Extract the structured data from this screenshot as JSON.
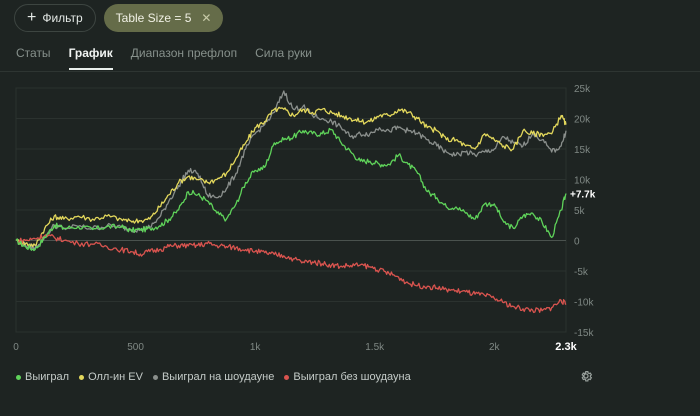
{
  "toolbar": {
    "filter_label": "Фильтр",
    "table_size_label": "Table Size = 5"
  },
  "tabs": [
    {
      "label": "Статы",
      "active": false
    },
    {
      "label": "График",
      "active": true
    },
    {
      "label": "Диапазон префлоп",
      "active": false
    },
    {
      "label": "Сила руки",
      "active": false
    }
  ],
  "chart_data": {
    "type": "line",
    "x_ticks": [
      "0",
      "500",
      "1k",
      "1.5k",
      "2k"
    ],
    "x_current": "2.3k",
    "y_ticks": [
      "25k",
      "20k",
      "15k",
      "10k",
      "5k",
      "0",
      "-5k",
      "-10k",
      "-15k"
    ],
    "xlim": [
      0,
      2300
    ],
    "ylim": [
      -15000,
      25000
    ],
    "end_label": "+7.7k",
    "grid": "horizontal",
    "series": [
      {
        "name": "Выиграл",
        "color": "#5fd35a",
        "x": [
          0,
          40,
          80,
          120,
          160,
          200,
          260,
          320,
          380,
          440,
          480,
          520,
          560,
          600,
          640,
          680,
          720,
          760,
          800,
          840,
          880,
          920,
          960,
          1000,
          1040,
          1080,
          1120,
          1160,
          1200,
          1240,
          1280,
          1320,
          1360,
          1400,
          1440,
          1480,
          1520,
          1560,
          1600,
          1640,
          1680,
          1720,
          1760,
          1800,
          1840,
          1880,
          1920,
          1960,
          2000,
          2040,
          2080,
          2120,
          2160,
          2200,
          2240,
          2280,
          2300
        ],
        "y": [
          0,
          -1000,
          -1500,
          500,
          2500,
          2000,
          2300,
          1800,
          2300,
          2200,
          1700,
          1700,
          2000,
          2400,
          3500,
          5000,
          8000,
          7500,
          6500,
          4500,
          3500,
          6000,
          9500,
          11500,
          12000,
          16000,
          16500,
          17000,
          18000,
          17500,
          17500,
          18200,
          16000,
          14500,
          13000,
          13000,
          12500,
          12500,
          14000,
          12500,
          11000,
          8000,
          7000,
          5500,
          5500,
          4500,
          3500,
          6000,
          6000,
          3000,
          2000,
          4000,
          4500,
          3000,
          500,
          5000,
          7700
        ]
      },
      {
        "name": "Олл-ин EV",
        "color": "#e3d85c",
        "x": [
          0,
          40,
          80,
          120,
          160,
          200,
          260,
          320,
          380,
          440,
          480,
          520,
          560,
          600,
          640,
          680,
          720,
          760,
          800,
          840,
          880,
          920,
          960,
          1000,
          1040,
          1080,
          1120,
          1160,
          1200,
          1240,
          1280,
          1320,
          1360,
          1400,
          1440,
          1480,
          1520,
          1560,
          1600,
          1640,
          1680,
          1720,
          1760,
          1800,
          1840,
          1880,
          1920,
          1960,
          2000,
          2040,
          2080,
          2120,
          2160,
          2200,
          2240,
          2280,
          2300
        ],
        "y": [
          0,
          -500,
          -800,
          2000,
          4000,
          3500,
          4000,
          3500,
          4000,
          3500,
          3200,
          3200,
          3500,
          5500,
          7500,
          9500,
          10500,
          10000,
          9500,
          10000,
          11000,
          13500,
          16000,
          18500,
          19500,
          21500,
          21500,
          20500,
          21500,
          21000,
          21500,
          21000,
          20500,
          20000,
          19500,
          19500,
          20500,
          20500,
          21500,
          21000,
          20000,
          18500,
          18000,
          16500,
          16500,
          15500,
          15000,
          17500,
          16500,
          15500,
          15000,
          18000,
          17500,
          17500,
          17500,
          20500,
          19000
        ]
      },
      {
        "name": "Выиграл на шоудауне",
        "color": "#8a8f8c",
        "x": [
          0,
          40,
          80,
          120,
          160,
          200,
          260,
          320,
          380,
          440,
          480,
          520,
          560,
          600,
          640,
          680,
          720,
          760,
          800,
          840,
          880,
          920,
          960,
          1000,
          1040,
          1080,
          1120,
          1160,
          1200,
          1240,
          1280,
          1320,
          1360,
          1400,
          1440,
          1480,
          1520,
          1560,
          1600,
          1640,
          1680,
          1720,
          1760,
          1800,
          1840,
          1880,
          1920,
          1960,
          2000,
          2040,
          2080,
          2120,
          2160,
          2200,
          2240,
          2280,
          2300
        ],
        "y": [
          0,
          -800,
          -1200,
          600,
          2500,
          2000,
          2300,
          2000,
          2400,
          2200,
          1800,
          1800,
          2200,
          3800,
          6500,
          9000,
          11500,
          11000,
          7500,
          7000,
          8500,
          11000,
          15000,
          17500,
          19000,
          21000,
          24500,
          21500,
          22000,
          20500,
          20000,
          19500,
          18500,
          17000,
          17500,
          17500,
          18500,
          18000,
          18500,
          18000,
          17500,
          16500,
          15500,
          14500,
          14000,
          14500,
          14000,
          14500,
          15000,
          17000,
          16000,
          15500,
          17500,
          16500,
          14500,
          15500,
          18000
        ]
      },
      {
        "name": "Выиграл без шоудауна",
        "color": "#d9544f",
        "x": [
          0,
          40,
          80,
          120,
          160,
          200,
          260,
          320,
          380,
          440,
          480,
          520,
          560,
          600,
          640,
          680,
          720,
          760,
          800,
          840,
          880,
          920,
          960,
          1000,
          1040,
          1080,
          1120,
          1160,
          1200,
          1240,
          1280,
          1320,
          1360,
          1400,
          1440,
          1480,
          1520,
          1560,
          1600,
          1640,
          1680,
          1720,
          1760,
          1800,
          1840,
          1880,
          1920,
          1960,
          2000,
          2040,
          2080,
          2120,
          2160,
          2200,
          2240,
          2280,
          2300
        ],
        "y": [
          0,
          0,
          300,
          800,
          500,
          0,
          -500,
          -600,
          -1000,
          -1500,
          -1800,
          -2200,
          -1800,
          -1500,
          -1000,
          -800,
          -900,
          -800,
          -500,
          -800,
          -1000,
          -1200,
          -1500,
          -1800,
          -2000,
          -2300,
          -2500,
          -3000,
          -3500,
          -3500,
          -3800,
          -4000,
          -4200,
          -4100,
          -4000,
          -4300,
          -4800,
          -5400,
          -6000,
          -7000,
          -7400,
          -7500,
          -7800,
          -8000,
          -8200,
          -8400,
          -8800,
          -9000,
          -9500,
          -10200,
          -10800,
          -11200,
          -11400,
          -11500,
          -11000,
          -9800,
          -10500
        ]
      }
    ]
  },
  "legend_items": [
    {
      "label": "Выиграл",
      "color": "#5fd35a"
    },
    {
      "label": "Олл-ин EV",
      "color": "#e3d85c"
    },
    {
      "label": "Выиграл на шоудауне",
      "color": "#8a8f8c"
    },
    {
      "label": "Выиграл без шоудауна",
      "color": "#d9544f"
    }
  ]
}
